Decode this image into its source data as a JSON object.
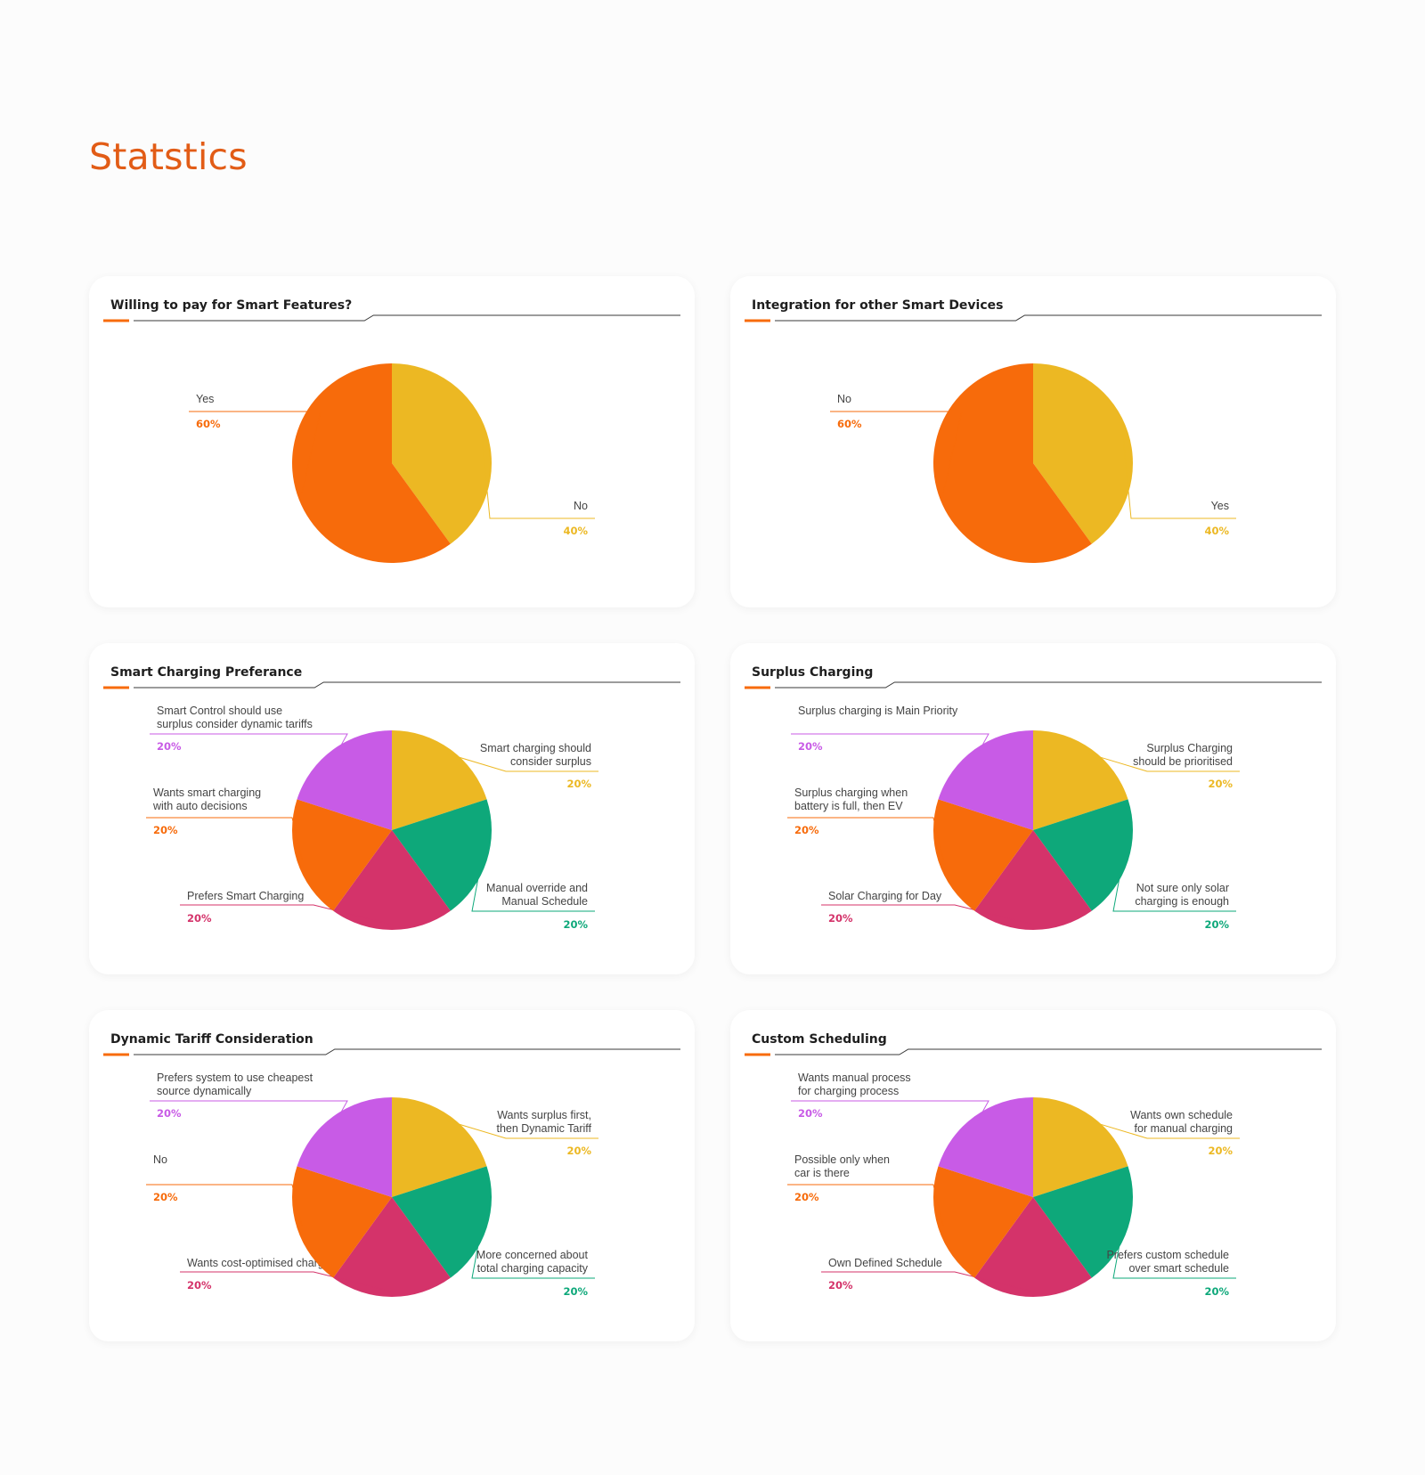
{
  "page": {
    "title": "Statstics"
  },
  "colors": {
    "orange": "#f76b0b",
    "yellow": "#ecb823",
    "purple": "#c85be6",
    "green": "#0ea87a",
    "crimson": "#d4336a",
    "title": "#e25c16"
  },
  "chart_data": [
    {
      "type": "pie",
      "title": "Willing to pay for Smart Features?",
      "slices": [
        {
          "label": "No",
          "value": 40,
          "pct_label": "40%",
          "color": "#ecb823"
        },
        {
          "label": "Yes",
          "value": 60,
          "pct_label": "60%",
          "color": "#f76b0b"
        }
      ]
    },
    {
      "type": "pie",
      "title": "Integration for other Smart Devices",
      "slices": [
        {
          "label": "Yes",
          "value": 40,
          "pct_label": "40%",
          "color": "#ecb823"
        },
        {
          "label": "No",
          "value": 60,
          "pct_label": "60%",
          "color": "#f76b0b"
        }
      ]
    },
    {
      "type": "pie",
      "title": "Smart Charging Preferance",
      "slices": [
        {
          "label": "Smart charging should\nconsider surplus",
          "value": 20,
          "pct_label": "20%",
          "color": "#ecb823"
        },
        {
          "label": "Manual override and\nManual Schedule",
          "value": 20,
          "pct_label": "20%",
          "color": "#0ea87a"
        },
        {
          "label": "Prefers Smart Charging",
          "value": 20,
          "pct_label": "20%",
          "color": "#d4336a"
        },
        {
          "label": "Wants smart charging\nwith auto decisions",
          "value": 20,
          "pct_label": "20%",
          "color": "#f76b0b"
        },
        {
          "label": "Smart Control should use\nsurplus consider dynamic tariffs",
          "value": 20,
          "pct_label": "20%",
          "color": "#c85be6"
        }
      ]
    },
    {
      "type": "pie",
      "title": "Surplus Charging",
      "slices": [
        {
          "label": "Surplus Charging\nshould be prioritised",
          "value": 20,
          "pct_label": "20%",
          "color": "#ecb823"
        },
        {
          "label": "Not sure only solar\ncharging is enough",
          "value": 20,
          "pct_label": "20%",
          "color": "#0ea87a"
        },
        {
          "label": "Solar Charging for Day",
          "value": 20,
          "pct_label": "20%",
          "color": "#d4336a"
        },
        {
          "label": "Surplus charging when\nbattery is full, then EV",
          "value": 20,
          "pct_label": "20%",
          "color": "#f76b0b"
        },
        {
          "label": "Surplus charging is Main Priority",
          "value": 20,
          "pct_label": "20%",
          "color": "#c85be6"
        }
      ]
    },
    {
      "type": "pie",
      "title": "Dynamic Tariff Consideration",
      "slices": [
        {
          "label": "Wants surplus first,\nthen Dynamic Tariff",
          "value": 20,
          "pct_label": "20%",
          "color": "#ecb823"
        },
        {
          "label": "More concerned about\ntotal charging capacity",
          "value": 20,
          "pct_label": "20%",
          "color": "#0ea87a"
        },
        {
          "label": "Wants cost-optimised charging",
          "value": 20,
          "pct_label": "20%",
          "color": "#d4336a"
        },
        {
          "label": "No",
          "value": 20,
          "pct_label": "20%",
          "color": "#f76b0b"
        },
        {
          "label": "Prefers system to use cheapest\nsource dynamically",
          "value": 20,
          "pct_label": "20%",
          "color": "#c85be6"
        }
      ]
    },
    {
      "type": "pie",
      "title": "Custom Scheduling",
      "slices": [
        {
          "label": "Wants own schedule\nfor manual charging",
          "value": 20,
          "pct_label": "20%",
          "color": "#ecb823"
        },
        {
          "label": "Prefers custom schedule\nover smart schedule",
          "value": 20,
          "pct_label": "20%",
          "color": "#0ea87a"
        },
        {
          "label": "Own Defined Schedule",
          "value": 20,
          "pct_label": "20%",
          "color": "#d4336a"
        },
        {
          "label": "Possible only when\ncar is there",
          "value": 20,
          "pct_label": "20%",
          "color": "#f76b0b"
        },
        {
          "label": "Wants manual process\nfor charging process",
          "value": 20,
          "pct_label": "20%",
          "color": "#c85be6"
        }
      ]
    }
  ]
}
